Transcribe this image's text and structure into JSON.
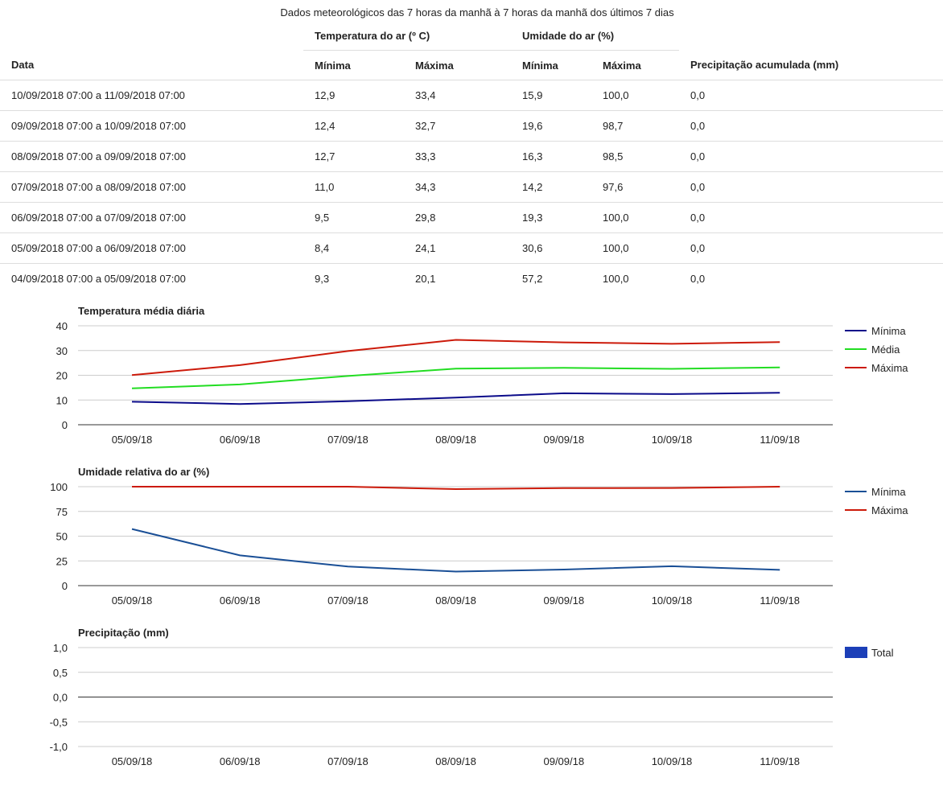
{
  "caption": "Dados meteorológicos das 7 horas da manhã à 7 horas da manhã dos últimos 7 dias",
  "table": {
    "group_headers": {
      "temperature": "Temperatura do ar (º C)",
      "humidity": "Umidade do ar (%)"
    },
    "columns": {
      "date": "Data",
      "min": "Mínima",
      "max": "Máxima",
      "precip": "Precipitação acumulada (mm)"
    },
    "rows": [
      {
        "date": "10/09/2018 07:00 a 11/09/2018 07:00",
        "tmin": "12,9",
        "tmax": "33,4",
        "umin": "15,9",
        "umax": "100,0",
        "precip": "0,0"
      },
      {
        "date": "09/09/2018 07:00 a 10/09/2018 07:00",
        "tmin": "12,4",
        "tmax": "32,7",
        "umin": "19,6",
        "umax": "98,7",
        "precip": "0,0"
      },
      {
        "date": "08/09/2018 07:00 a 09/09/2018 07:00",
        "tmin": "12,7",
        "tmax": "33,3",
        "umin": "16,3",
        "umax": "98,5",
        "precip": "0,0"
      },
      {
        "date": "07/09/2018 07:00 a 08/09/2018 07:00",
        "tmin": "11,0",
        "tmax": "34,3",
        "umin": "14,2",
        "umax": "97,6",
        "precip": "0,0"
      },
      {
        "date": "06/09/2018 07:00 a 07/09/2018 07:00",
        "tmin": "9,5",
        "tmax": "29,8",
        "umin": "19,3",
        "umax": "100,0",
        "precip": "0,0"
      },
      {
        "date": "05/09/2018 07:00 a 06/09/2018 07:00",
        "tmin": "8,4",
        "tmax": "24,1",
        "umin": "30,6",
        "umax": "100,0",
        "precip": "0,0"
      },
      {
        "date": "04/09/2018 07:00 a 05/09/2018 07:00",
        "tmin": "9,3",
        "tmax": "20,1",
        "umin": "57,2",
        "umax": "100,0",
        "precip": "0,0"
      }
    ]
  },
  "chart_data": [
    {
      "type": "line",
      "title": "Temperatura média diária",
      "categories": [
        "05/09/18",
        "06/09/18",
        "07/09/18",
        "08/09/18",
        "09/09/18",
        "10/09/18",
        "11/09/18"
      ],
      "ylim": [
        0,
        40
      ],
      "yticks": [
        "0",
        "10",
        "20",
        "30",
        "40"
      ],
      "grid": true,
      "legend_position": "right",
      "series": [
        {
          "name": "Mínima",
          "color": "#0b0b8a",
          "values": [
            9.3,
            8.4,
            9.5,
            11.0,
            12.7,
            12.4,
            12.9
          ]
        },
        {
          "name": "Média",
          "color": "#22dd22",
          "values": [
            14.7,
            16.3,
            19.7,
            22.7,
            23.0,
            22.6,
            23.2
          ]
        },
        {
          "name": "Máxima",
          "color": "#cc1a0a",
          "values": [
            20.1,
            24.1,
            29.8,
            34.3,
            33.3,
            32.7,
            33.4
          ]
        }
      ]
    },
    {
      "type": "line",
      "title": "Umidade relativa do ar (%)",
      "categories": [
        "05/09/18",
        "06/09/18",
        "07/09/18",
        "08/09/18",
        "09/09/18",
        "10/09/18",
        "11/09/18"
      ],
      "ylim": [
        0,
        100
      ],
      "yticks": [
        "0",
        "25",
        "50",
        "75",
        "100"
      ],
      "grid": true,
      "legend_position": "right",
      "series": [
        {
          "name": "Mínima",
          "color": "#1a4f96",
          "values": [
            57.2,
            30.6,
            19.3,
            14.2,
            16.3,
            19.6,
            15.9
          ]
        },
        {
          "name": "Máxima",
          "color": "#cc1a0a",
          "values": [
            100.0,
            100.0,
            100.0,
            97.6,
            98.5,
            98.7,
            100.0
          ]
        }
      ]
    },
    {
      "type": "bar",
      "title": "Precipitação (mm)",
      "categories": [
        "05/09/18",
        "06/09/18",
        "07/09/18",
        "08/09/18",
        "09/09/18",
        "10/09/18",
        "11/09/18"
      ],
      "ylim": [
        -1,
        1
      ],
      "yticks": [
        "-1,0",
        "-0,5",
        "0,0",
        "0,5",
        "1,0"
      ],
      "grid": true,
      "legend_position": "right",
      "series": [
        {
          "name": "Total",
          "color": "#1c3fb8",
          "values": [
            0,
            0,
            0,
            0,
            0,
            0,
            0
          ]
        }
      ]
    }
  ]
}
